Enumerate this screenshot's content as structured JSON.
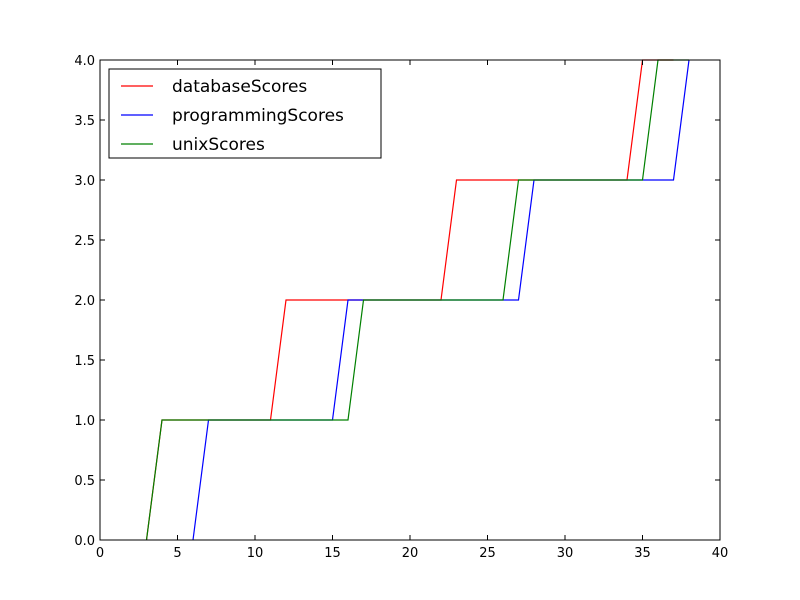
{
  "chart_data": {
    "type": "line",
    "title": "",
    "xlabel": "",
    "ylabel": "",
    "xlim": [
      0,
      40
    ],
    "ylim": [
      0,
      4
    ],
    "xticks": [
      0,
      5,
      10,
      15,
      20,
      25,
      30,
      35,
      40
    ],
    "yticks": [
      0,
      0.5,
      1,
      1.5,
      2,
      2.5,
      3,
      3.5,
      4
    ],
    "xtick_labels": [
      "0",
      "5",
      "10",
      "15",
      "20",
      "25",
      "30",
      "35",
      "40"
    ],
    "ytick_labels": [
      "0.0",
      "0.5",
      "1.0",
      "1.5",
      "2.0",
      "2.5",
      "3.0",
      "3.5",
      "4.0"
    ],
    "grid": false,
    "legend_position": "top-left",
    "series": [
      {
        "name": "databaseScores",
        "color": "#ff0000",
        "x": [
          3,
          4,
          11,
          12,
          22,
          23,
          34,
          35,
          37
        ],
        "y": [
          0,
          1,
          1,
          2,
          2,
          3,
          3,
          4,
          4
        ]
      },
      {
        "name": "programmingScores",
        "color": "#0000ff",
        "x": [
          6,
          7,
          15,
          16,
          27,
          28,
          37,
          38
        ],
        "y": [
          0,
          1,
          1,
          2,
          2,
          3,
          3,
          4
        ]
      },
      {
        "name": "unixScores",
        "color": "#008000",
        "x": [
          3,
          4,
          16,
          17,
          26,
          27,
          35,
          36,
          38
        ],
        "y": [
          0,
          1,
          1,
          2,
          2,
          3,
          3,
          4,
          4
        ]
      }
    ]
  }
}
